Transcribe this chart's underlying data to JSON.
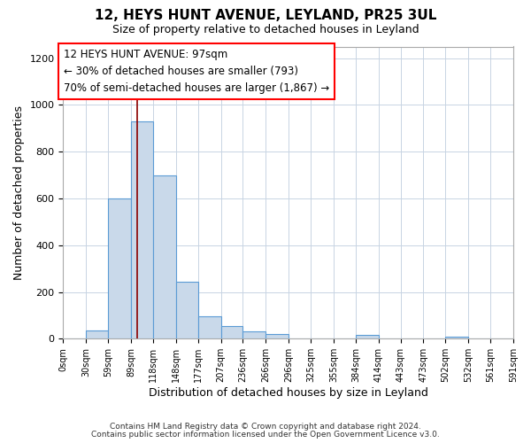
{
  "title": "12, HEYS HUNT AVENUE, LEYLAND, PR25 3UL",
  "subtitle": "Size of property relative to detached houses in Leyland",
  "xlabel": "Distribution of detached houses by size in Leyland",
  "ylabel": "Number of detached properties",
  "footer_line1": "Contains HM Land Registry data © Crown copyright and database right 2024.",
  "footer_line2": "Contains public sector information licensed under the Open Government Licence v3.0.",
  "annotation_line1": "12 HEYS HUNT AVENUE: 97sqm",
  "annotation_line2": "← 30% of detached houses are smaller (793)",
  "annotation_line3": "70% of semi-detached houses are larger (1,867) →",
  "bar_color": "#c9d9ea",
  "bar_edge_color": "#5b9bd5",
  "marker_line_color": "#8b0000",
  "marker_value": 97,
  "bin_edges": [
    0,
    30,
    59,
    89,
    118,
    148,
    177,
    207,
    236,
    266,
    296,
    325,
    355,
    384,
    414,
    443,
    473,
    502,
    532,
    561,
    591
  ],
  "bin_counts": [
    0,
    35,
    600,
    930,
    700,
    245,
    95,
    55,
    30,
    20,
    0,
    0,
    0,
    15,
    0,
    0,
    0,
    10,
    0,
    0
  ],
  "ylim": [
    0,
    1250
  ],
  "yticks": [
    0,
    200,
    400,
    600,
    800,
    1000,
    1200
  ],
  "background_color": "#ffffff",
  "grid_color": "#c8d4e3"
}
